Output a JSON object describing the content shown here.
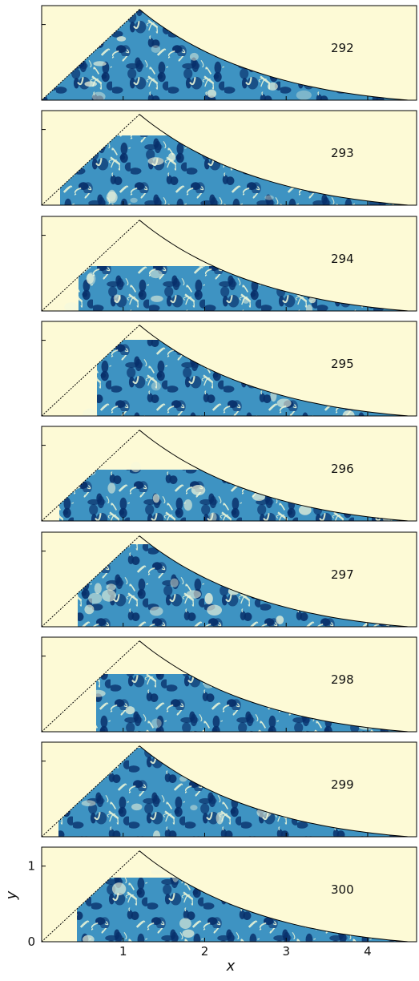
{
  "chart_data": {
    "type": "heatmap",
    "description": "Stack of nine eigenfunction intensity maps on a curved triangular billiard, labelled by mode number",
    "panels": [
      {
        "label": "292"
      },
      {
        "label": "293"
      },
      {
        "label": "294"
      },
      {
        "label": "295"
      },
      {
        "label": "296"
      },
      {
        "label": "297"
      },
      {
        "label": "298"
      },
      {
        "label": "299"
      },
      {
        "label": "300"
      }
    ],
    "domain": {
      "apex": [
        1.2,
        1.2
      ],
      "right_end": [
        4.5,
        0.0
      ],
      "left_edge": "straight line from (0,0) to apex (dashed)",
      "right_edge": "convex curve from apex down to (4.5, 0)"
    },
    "xlabel": "x",
    "ylabel": "y",
    "x_ticks": [
      "1",
      "2",
      "3",
      "4"
    ],
    "y_ticks": [
      "0",
      "1"
    ],
    "xlim": [
      0,
      4.6
    ],
    "ylim": [
      0,
      1.25
    ],
    "colors": {
      "background": "#fdfad6",
      "low": "#fdfad6",
      "mid": "#3e93c2",
      "high": "#08306b"
    }
  }
}
